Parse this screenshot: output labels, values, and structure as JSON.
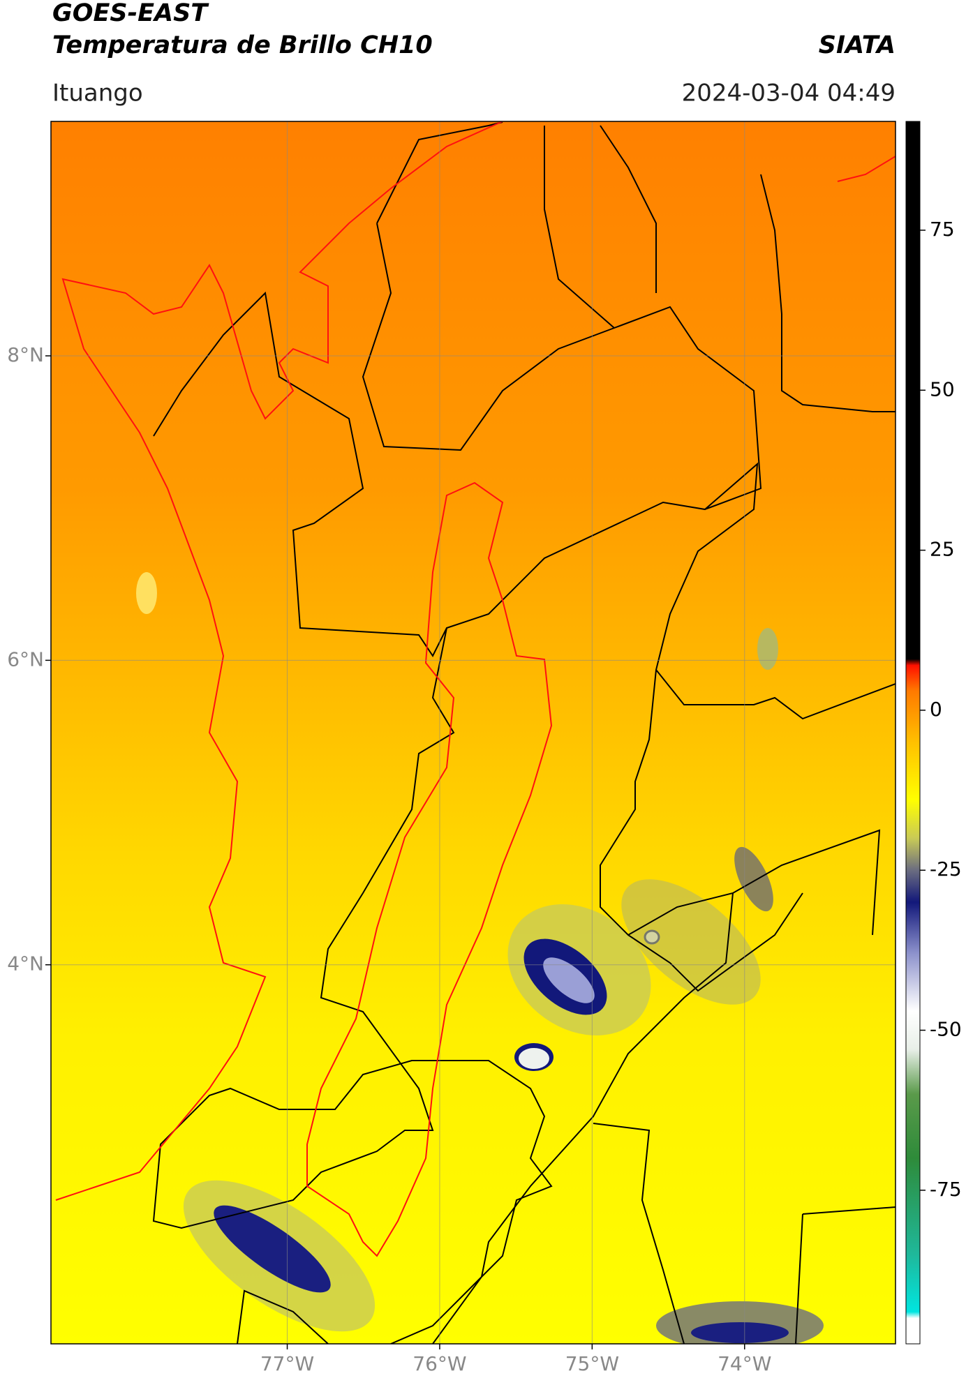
{
  "header": {
    "title": "GOES-EAST",
    "subtitle": "Temperatura de Brillo CH10",
    "source": "SIATA",
    "region": "Ituango",
    "datetime": "2024-03-04 04:49"
  },
  "map": {
    "lat_range": [
      1.51,
      9.54
    ],
    "lon_range": [
      -78.55,
      -73.01
    ],
    "lat_ticks": [
      {
        "value": 8,
        "label": "8°N"
      },
      {
        "value": 6,
        "label": "6°N"
      },
      {
        "value": 4,
        "label": "4°N"
      }
    ],
    "lon_ticks": [
      {
        "value": -77,
        "label": "77°W"
      },
      {
        "value": -76,
        "label": "76°W"
      },
      {
        "value": -75,
        "label": "75°W"
      },
      {
        "value": -74,
        "label": "74°W"
      }
    ],
    "grid": true
  },
  "colorbar": {
    "range": [
      -99,
      92
    ],
    "ticks": [
      75,
      50,
      25,
      0,
      -25,
      -50,
      -75
    ],
    "stops": [
      {
        "value": -99,
        "color": "#ffffff"
      },
      {
        "value": -95,
        "color": "#ffffff"
      },
      {
        "value": -94,
        "color": "#00e5e0"
      },
      {
        "value": -85,
        "color": "#1fb89a"
      },
      {
        "value": -70,
        "color": "#2e8b3a"
      },
      {
        "value": -60,
        "color": "#5a9a4a"
      },
      {
        "value": -53,
        "color": "#e8efe8"
      },
      {
        "value": -47,
        "color": "#ffffff"
      },
      {
        "value": -38,
        "color": "#8d92cc"
      },
      {
        "value": -30,
        "color": "#12187a"
      },
      {
        "value": -25,
        "color": "#6b6d80"
      },
      {
        "value": -20,
        "color": "#c9ca56"
      },
      {
        "value": -14,
        "color": "#ffff00"
      },
      {
        "value": -5,
        "color": "#ffc000"
      },
      {
        "value": 3,
        "color": "#ff7a00"
      },
      {
        "value": 7,
        "color": "#ff1000"
      },
      {
        "value": 8,
        "color": "#000000"
      },
      {
        "value": 92,
        "color": "#000000"
      }
    ]
  }
}
